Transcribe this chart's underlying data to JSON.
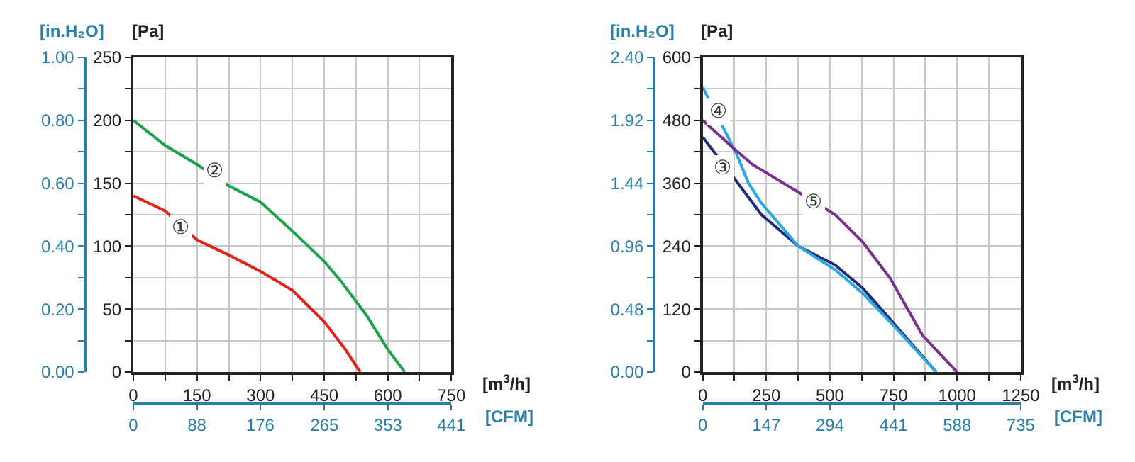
{
  "chart_data": [
    {
      "type": "line",
      "xlabel": "[m$^{3}$/h]",
      "ylabel": "[Pa]",
      "y2label": "[in.H₂O]",
      "x2label": "[CFM]",
      "grid": true,
      "xlim": [
        0,
        750
      ],
      "xticks": [
        0,
        {
          "value": 75,
          "label": null
        },
        150,
        {
          "value": 225,
          "label": null
        },
        300,
        {
          "value": 375,
          "label": null
        },
        450,
        {
          "value": 525,
          "label": null
        },
        600,
        {
          "value": 675,
          "label": null
        },
        750
      ],
      "ylim": [
        0,
        250
      ],
      "yticks": [
        0,
        {
          "value": 25,
          "label": null
        },
        50,
        {
          "value": 75,
          "label": null
        },
        100,
        {
          "value": 125,
          "label": null
        },
        150,
        {
          "value": 175,
          "label": null
        },
        200,
        {
          "value": 225,
          "label": null
        },
        250
      ],
      "y2lim": [
        0,
        1
      ],
      "y2ticks": [
        {
          "value": 0,
          "label": "0.00"
        },
        {
          "value": 0.1,
          "label": null
        },
        {
          "value": 0.2,
          "label": "0.20"
        },
        {
          "value": 0.3,
          "label": null
        },
        {
          "value": 0.4,
          "label": "0.40"
        },
        {
          "value": 0.5,
          "label": null
        },
        {
          "value": 0.6,
          "label": "0.60"
        },
        {
          "value": 0.7,
          "label": null
        },
        {
          "value": 0.8,
          "label": "0.80"
        },
        {
          "value": 0.9,
          "label": null
        },
        {
          "value": 1,
          "label": "1.00"
        }
      ],
      "x2lim": [
        0,
        441
      ],
      "x2ticks": [
        0,
        88,
        176,
        265,
        353,
        441
      ],
      "series": [
        {
          "color": "#e2231a",
          "x": [
            0,
            75,
            150,
            225,
            300,
            375,
            450,
            500,
            535
          ],
          "values": [
            140,
            128,
            105,
            93,
            80,
            65,
            40,
            18,
            0
          ]
        },
        {
          "color": "#1aa34a",
          "x": [
            0,
            75,
            150,
            225,
            300,
            375,
            450,
            490,
            550,
            600,
            640
          ],
          "values": [
            200,
            180,
            165,
            148,
            135,
            112,
            88,
            72,
            45,
            18,
            0
          ]
        }
      ],
      "annotations": [
        {
          "text": "①",
          "x": 112,
          "y": 114
        },
        {
          "text": "②",
          "x": 193,
          "y": 159
        }
      ]
    },
    {
      "type": "line",
      "xlabel": "[m$^{3}$/h]",
      "ylabel": "[Pa]",
      "y2label": "[in.H₂O]",
      "x2label": "[CFM]",
      "grid": true,
      "xlim": [
        0,
        1250
      ],
      "xticks": [
        0,
        {
          "value": 125,
          "label": null
        },
        250,
        {
          "value": 375,
          "label": null
        },
        500,
        {
          "value": 625,
          "label": null
        },
        750,
        {
          "value": 875,
          "label": null
        },
        1000,
        {
          "value": 1125,
          "label": null
        },
        1250
      ],
      "ylim": [
        0,
        600
      ],
      "yticks": [
        0,
        {
          "value": 60,
          "label": null
        },
        120,
        {
          "value": 180,
          "label": null
        },
        240,
        {
          "value": 300,
          "label": null
        },
        360,
        {
          "value": 420,
          "label": null
        },
        480,
        {
          "value": 540,
          "label": null
        },
        600
      ],
      "y2lim": [
        0,
        2.4
      ],
      "y2ticks": [
        {
          "value": 0,
          "label": "0.00"
        },
        {
          "value": 0.24,
          "label": null
        },
        {
          "value": 0.48,
          "label": "0.48"
        },
        {
          "value": 0.72,
          "label": null
        },
        {
          "value": 0.96,
          "label": "0.96"
        },
        {
          "value": 1.2,
          "label": null
        },
        {
          "value": 1.44,
          "label": "1.44"
        },
        {
          "value": 1.68,
          "label": null
        },
        {
          "value": 1.92,
          "label": "1.92"
        },
        {
          "value": 2.16,
          "label": null
        },
        {
          "value": 2.4,
          "label": "2.40"
        }
      ],
      "x2lim": [
        0,
        735
      ],
      "x2ticks": [
        0,
        147,
        294,
        441,
        588,
        735
      ],
      "series": [
        {
          "color": "#1f2a7a",
          "x": [
            0,
            123,
            231,
            376,
            521,
            629,
            738,
            918
          ],
          "values": [
            448,
            370,
            300,
            240,
            204,
            160,
            100,
            0
          ]
        },
        {
          "color": "#29a8e0",
          "x": [
            0,
            132,
            180,
            231,
            376,
            521,
            629,
            738,
            918
          ],
          "values": [
            543,
            417,
            360,
            322,
            240,
            195,
            150,
            95,
            0
          ]
        },
        {
          "color": "#7b2f8e",
          "x": [
            0,
            123,
            195,
            376,
            521,
            629,
            738,
            864,
            1000
          ],
          "values": [
            480,
            426,
            396,
            343,
            300,
            248,
            178,
            70,
            0
          ]
        }
      ],
      "annotations": [
        {
          "text": "④",
          "x": 60,
          "y": 497
        },
        {
          "text": "③",
          "x": 78,
          "y": 387
        },
        {
          "text": "⑤",
          "x": 436,
          "y": 324
        }
      ]
    }
  ]
}
